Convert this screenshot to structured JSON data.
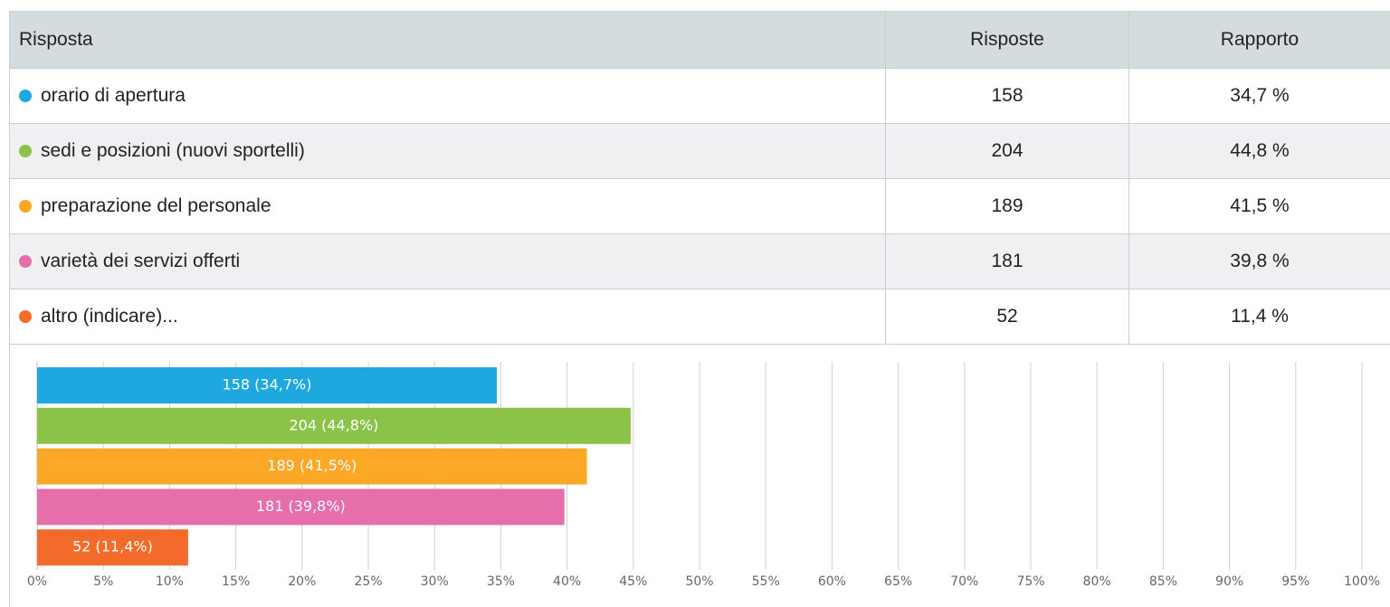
{
  "table": {
    "headers": [
      "Risposta",
      "Risposte",
      "Rapporto"
    ],
    "rows": [
      [
        "orario di apertura",
        158,
        "34,7 %"
      ],
      [
        "sedi e posizioni (nuovi sportelli)",
        204,
        "44,8 %"
      ],
      [
        "preparazione del personale",
        189,
        "41,5 %"
      ],
      [
        "varietà dei servizi offerti",
        181,
        "39,8 %"
      ],
      [
        "altro (indicare)...",
        52,
        "11,4 %"
      ]
    ]
  },
  "chart_data": {
    "type": "bar",
    "orientation": "horizontal",
    "values": [
      34.7,
      44.8,
      41.5,
      39.8,
      11.4
    ],
    "value_labels": [
      "158 (34,7%)",
      "204 (44,8%)",
      "189 (41,5%)",
      "181 (39,8%)",
      "52 (11,4%)"
    ],
    "colors": [
      "#1fa8e0",
      "#8bc34a",
      "#fba826",
      "#e46faa",
      "#f26b2a"
    ],
    "xlim": [
      0,
      100
    ],
    "xticks": [
      {
        "value": 0,
        "label": "0%"
      },
      {
        "value": 5,
        "label": "5%"
      },
      {
        "value": 10,
        "label": "10%"
      },
      {
        "value": 15,
        "label": "15%"
      },
      {
        "value": 20,
        "label": "20%"
      },
      {
        "value": 25,
        "label": "25%"
      },
      {
        "value": 30,
        "label": "30%"
      },
      {
        "value": 35,
        "label": "35%"
      },
      {
        "value": 40,
        "label": "40%"
      },
      {
        "value": 45,
        "label": "45%"
      },
      {
        "value": 50,
        "label": "50%"
      },
      {
        "value": 55,
        "label": "55%"
      },
      {
        "value": 60,
        "label": "60%"
      },
      {
        "value": 65,
        "label": "65%"
      },
      {
        "value": 70,
        "label": "70%"
      },
      {
        "value": 75,
        "label": "75%"
      },
      {
        "value": 80,
        "label": "80%"
      },
      {
        "value": 85,
        "label": "85%"
      },
      {
        "value": 90,
        "label": "90%"
      },
      {
        "value": 95,
        "label": "95%"
      },
      {
        "value": 100,
        "label": "100%"
      }
    ],
    "grid": true
  }
}
